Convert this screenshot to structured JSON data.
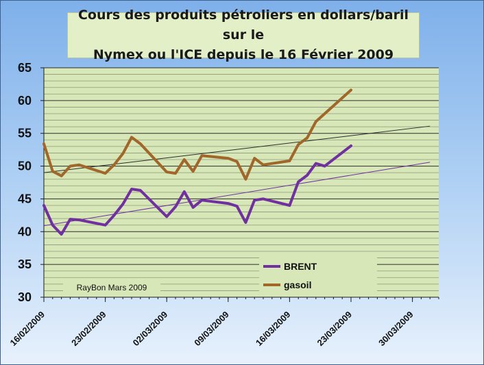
{
  "chart_data": {
    "type": "line",
    "title": "Cours des produits pétroliers en dollars/baril sur le\nNymex  ou l'ICE depuis le 16 Février 2009",
    "credit": "RayBon Mars 2009",
    "ylim": [
      30,
      65
    ],
    "yticks": [
      30,
      35,
      40,
      45,
      50,
      55,
      60,
      65
    ],
    "xlim": [
      "2009-02-16",
      "2009-04-02"
    ],
    "xticks": [
      {
        "date": "2009-02-16",
        "label": "16/02/2009"
      },
      {
        "date": "2009-02-23",
        "label": "23/02/2009"
      },
      {
        "date": "2009-03-02",
        "label": "02/03/2009"
      },
      {
        "date": "2009-03-09",
        "label": "09/03/2009"
      },
      {
        "date": "2009-03-16",
        "label": "16/03/2009"
      },
      {
        "date": "2009-03-23",
        "label": "23/03/2009"
      },
      {
        "date": "2009-03-30",
        "label": "30/03/2009"
      }
    ],
    "legend_position": "bottom-right",
    "grid": true,
    "series": [
      {
        "name": "BRENT",
        "color": "#7030a0",
        "points": [
          [
            "2009-02-16",
            44.0
          ],
          [
            "2009-02-17",
            41.0
          ],
          [
            "2009-02-18",
            39.6
          ],
          [
            "2009-02-19",
            41.9
          ],
          [
            "2009-02-20",
            41.8
          ],
          [
            "2009-02-23",
            41.0
          ],
          [
            "2009-02-24",
            42.5
          ],
          [
            "2009-02-25",
            44.2
          ],
          [
            "2009-02-26",
            46.5
          ],
          [
            "2009-02-27",
            46.3
          ],
          [
            "2009-03-02",
            42.3
          ],
          [
            "2009-03-03",
            43.8
          ],
          [
            "2009-03-04",
            46.1
          ],
          [
            "2009-03-05",
            43.7
          ],
          [
            "2009-03-06",
            44.8
          ],
          [
            "2009-03-09",
            44.3
          ],
          [
            "2009-03-10",
            43.9
          ],
          [
            "2009-03-11",
            41.4
          ],
          [
            "2009-03-12",
            44.8
          ],
          [
            "2009-03-13",
            45.0
          ],
          [
            "2009-03-16",
            44.0
          ],
          [
            "2009-03-17",
            47.6
          ],
          [
            "2009-03-18",
            48.6
          ],
          [
            "2009-03-19",
            50.4
          ],
          [
            "2009-03-20",
            50.0
          ],
          [
            "2009-03-23",
            53.1
          ]
        ]
      },
      {
        "name": "gasoil",
        "color": "#a0662a",
        "points": [
          [
            "2009-02-16",
            53.4
          ],
          [
            "2009-02-17",
            49.2
          ],
          [
            "2009-02-18",
            48.5
          ],
          [
            "2009-02-19",
            50.0
          ],
          [
            "2009-02-20",
            50.2
          ],
          [
            "2009-02-23",
            48.9
          ],
          [
            "2009-02-24",
            50.2
          ],
          [
            "2009-02-25",
            51.9
          ],
          [
            "2009-02-26",
            54.4
          ],
          [
            "2009-02-27",
            53.4
          ],
          [
            "2009-03-02",
            49.1
          ],
          [
            "2009-03-03",
            48.9
          ],
          [
            "2009-03-04",
            51.0
          ],
          [
            "2009-03-05",
            49.2
          ],
          [
            "2009-03-06",
            51.6
          ],
          [
            "2009-03-09",
            51.2
          ],
          [
            "2009-03-10",
            50.7
          ],
          [
            "2009-03-11",
            48.0
          ],
          [
            "2009-03-12",
            51.2
          ],
          [
            "2009-03-13",
            50.2
          ],
          [
            "2009-03-16",
            50.8
          ],
          [
            "2009-03-17",
            53.3
          ],
          [
            "2009-03-18",
            54.3
          ],
          [
            "2009-03-19",
            56.8
          ],
          [
            "2009-03-20",
            58.0
          ],
          [
            "2009-03-23",
            61.6
          ]
        ]
      }
    ],
    "trendlines": [
      {
        "of": "BRENT",
        "color": "#7030a0",
        "points": [
          [
            "2009-02-16",
            40.9
          ],
          [
            "2009-04-01",
            50.6
          ]
        ]
      },
      {
        "of": "gasoil",
        "color": "#2b2b2b",
        "points": [
          [
            "2009-02-16",
            49.0
          ],
          [
            "2009-04-01",
            56.1
          ]
        ]
      }
    ]
  }
}
